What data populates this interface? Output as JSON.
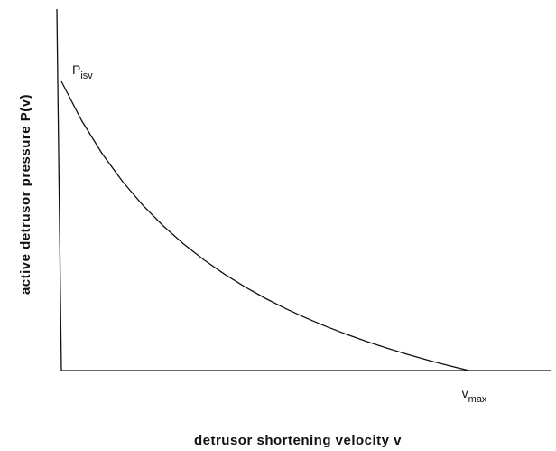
{
  "chart_data": {
    "type": "line",
    "xlabel": "detrusor shortening velocity v",
    "ylabel": "active detrusor pressure P(v)",
    "annotations": [
      {
        "base": "P",
        "sub": "isv",
        "x": 0,
        "y": 1
      },
      {
        "base": "v",
        "sub": "max",
        "x": 1,
        "y": 0
      }
    ],
    "x": [
      0,
      0.05,
      0.1,
      0.15,
      0.2,
      0.25,
      0.3,
      0.35,
      0.4,
      0.45,
      0.5,
      0.55,
      0.6,
      0.65,
      0.7,
      0.75,
      0.8,
      0.85,
      0.9,
      0.95,
      1
    ],
    "series": [
      {
        "color": "#111111",
        "values": [
          1,
          0.8636,
          0.75,
          0.6538,
          0.5714,
          0.5,
          0.4375,
          0.3824,
          0.3333,
          0.2895,
          0.25,
          0.2143,
          0.1818,
          0.1522,
          0.125,
          0.1,
          0.0769,
          0.0556,
          0.0357,
          0.0172,
          0
        ]
      }
    ],
    "xlim": [
      0,
      1.2
    ],
    "ylim": [
      0,
      1.25
    ]
  }
}
